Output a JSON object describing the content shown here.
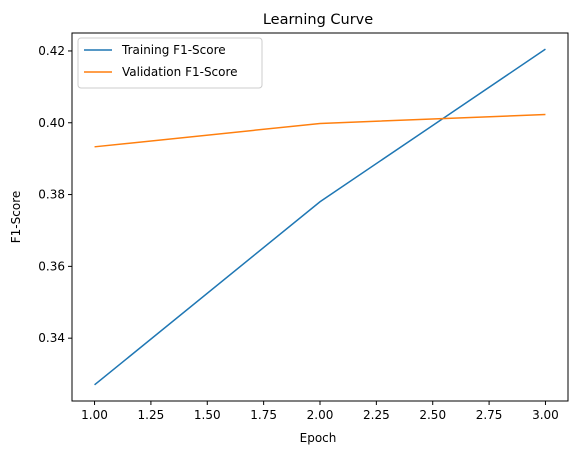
{
  "chart_data": {
    "type": "line",
    "title": "Learning Curve",
    "xlabel": "Epoch",
    "ylabel": "F1-Score",
    "x": [
      1.0,
      2.0,
      3.0
    ],
    "xlim": [
      0.9,
      3.1
    ],
    "ylim": [
      0.3225,
      0.425
    ],
    "xticks": [
      1.0,
      1.25,
      1.5,
      1.75,
      2.0,
      2.25,
      2.5,
      2.75,
      3.0
    ],
    "xtick_labels": [
      "1.00",
      "1.25",
      "1.50",
      "1.75",
      "2.00",
      "2.25",
      "2.50",
      "2.75",
      "3.00"
    ],
    "yticks": [
      0.34,
      0.36,
      0.38,
      0.4,
      0.42
    ],
    "ytick_labels": [
      "0.34",
      "0.36",
      "0.38",
      "0.40",
      "0.42"
    ],
    "grid": false,
    "legend_position": "top-left",
    "series": [
      {
        "name": "Training F1-Score",
        "values": [
          0.327,
          0.378,
          0.4205
        ],
        "color": "#1f77b4"
      },
      {
        "name": "Validation F1-Score",
        "values": [
          0.3933,
          0.3998,
          0.4023
        ],
        "color": "#ff7f0e"
      }
    ]
  }
}
